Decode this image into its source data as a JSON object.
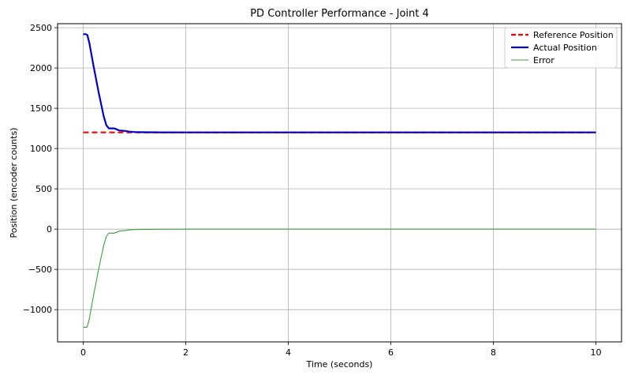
{
  "chart_data": {
    "type": "line",
    "title": "PD Controller Performance - Joint 4",
    "xlabel": "Time (seconds)",
    "ylabel": "Position (encoder counts)",
    "xlim": [
      -0.5,
      10.5
    ],
    "ylim": [
      -1400,
      2550
    ],
    "xticks": [
      0,
      2,
      4,
      6,
      8,
      10
    ],
    "yticks": [
      -1000,
      -500,
      0,
      500,
      1000,
      1500,
      2000,
      2500
    ],
    "ytick_labels": [
      "−1000",
      "−500",
      "0",
      "500",
      "1000",
      "1500",
      "2000",
      "2500"
    ],
    "grid": true,
    "legend_position": "top-right",
    "series": [
      {
        "name": "Reference Position",
        "color": "#ff0000",
        "style": "dashed",
        "x": [
          0,
          0.5,
          1,
          2,
          4,
          6,
          8,
          10
        ],
        "y": [
          1200,
          1200,
          1200,
          1200,
          1200,
          1200,
          1200,
          1200
        ]
      },
      {
        "name": "Actual Position",
        "color": "#0000cc",
        "style": "solid",
        "x": [
          0,
          0.05,
          0.08,
          0.12,
          0.2,
          0.3,
          0.4,
          0.45,
          0.5,
          0.55,
          0.6,
          0.65,
          0.7,
          0.8,
          0.9,
          1.0,
          1.2,
          1.5,
          2,
          3,
          5,
          7,
          10
        ],
        "y": [
          2420,
          2420,
          2410,
          2310,
          2030,
          1700,
          1400,
          1290,
          1250,
          1250,
          1250,
          1240,
          1225,
          1220,
          1210,
          1205,
          1202,
          1201,
          1200,
          1200,
          1200,
          1200,
          1200
        ]
      },
      {
        "name": "Error",
        "color": "#3f9f3f",
        "style": "solid",
        "x": [
          0,
          0.05,
          0.08,
          0.12,
          0.2,
          0.3,
          0.4,
          0.45,
          0.5,
          0.55,
          0.6,
          0.65,
          0.7,
          0.8,
          0.9,
          1.0,
          1.2,
          1.5,
          2,
          3,
          5,
          7,
          10
        ],
        "y": [
          -1220,
          -1220,
          -1210,
          -1110,
          -830,
          -500,
          -200,
          -90,
          -50,
          -50,
          -50,
          -40,
          -25,
          -20,
          -10,
          -5,
          -2,
          -1,
          0,
          0,
          0,
          0,
          0
        ]
      }
    ]
  }
}
